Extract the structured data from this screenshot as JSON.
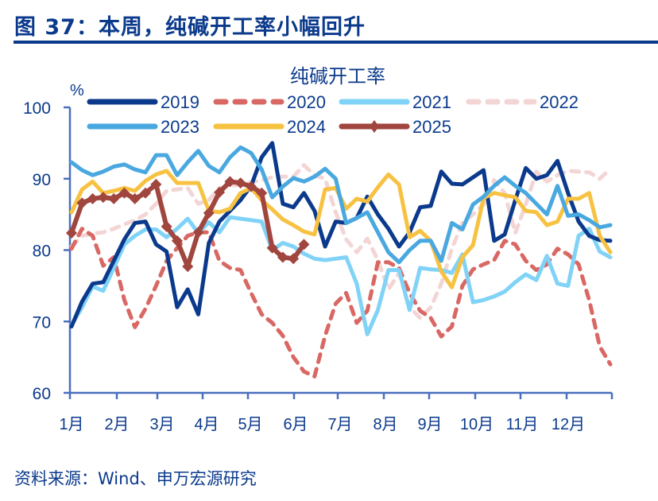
{
  "figure_title": "图 37：本周，纯碱开工率小幅回升",
  "source": "资料来源：Wind、申万宏源研究",
  "chart_data": {
    "type": "line",
    "title": "纯碱开工率",
    "ylabel": "%",
    "xlabel": "",
    "ylim": [
      60,
      100
    ],
    "yticks": [
      60,
      70,
      80,
      90,
      100
    ],
    "x_tick_labels": [
      "1月",
      "2月",
      "3月",
      "4月",
      "5月",
      "6月",
      "7月",
      "8月",
      "9月",
      "10月",
      "11月",
      "12月"
    ],
    "x_unit": "week of year",
    "grid": false,
    "legend_placement": "top",
    "series": [
      {
        "name": "2019",
        "color": "#0b3a8c",
        "style": "solid",
        "values": [
          69.3,
          72.8,
          75.3,
          75.5,
          78.5,
          81.5,
          83.8,
          84,
          80.8,
          79.8,
          72,
          74.5,
          71,
          81,
          84,
          85.5,
          87,
          89,
          93,
          95,
          86.5,
          86,
          88,
          85.5,
          80.5,
          84,
          83.8,
          84.5,
          87.5,
          85,
          83,
          80.5,
          82.5,
          86,
          86.2,
          91,
          89.3,
          89.2,
          90.2,
          91.2,
          81.3,
          82.2,
          87,
          91.5,
          90,
          90.5,
          92.5,
          88,
          84,
          82,
          81.4,
          81.3
        ]
      },
      {
        "name": "2020",
        "color": "#d96864",
        "style": "dashed",
        "values": [
          80.2,
          83,
          82,
          77.8,
          79,
          73,
          69.2,
          71.8,
          75,
          78.5,
          80.3,
          82,
          82.5,
          82.5,
          78.5,
          77.5,
          77.2,
          74,
          71,
          69.8,
          68,
          65,
          63,
          62.3,
          68,
          72.5,
          74,
          69.8,
          71.5,
          78.3,
          78.3,
          77.5,
          74,
          71.5,
          70.5,
          67.9,
          69.3,
          75,
          77.3,
          78,
          78.6,
          81.3,
          80.8,
          78.5,
          77.2,
          78,
          80.2,
          79.4,
          78,
          73,
          66.5,
          64
        ]
      },
      {
        "name": "2021",
        "color": "#80d3f7",
        "style": "solid",
        "values": [
          69.5,
          72,
          74.9,
          74.3,
          77.5,
          80.8,
          82,
          82.9,
          82.9,
          81.8,
          83,
          84.4,
          82.4,
          83.9,
          82.5,
          84.6,
          84.4,
          84.2,
          84,
          80,
          81,
          80.5,
          79.5,
          78.8,
          78.6,
          78.8,
          79,
          75.3,
          68.2,
          71.6,
          77.2,
          77.2,
          71.6,
          77.5,
          77.3,
          77.2,
          76.8,
          79.4,
          72.7,
          73,
          73.5,
          74.2,
          75.5,
          76.6,
          75.8,
          79.2,
          75.3,
          75,
          82,
          83,
          79.8,
          79
        ]
      },
      {
        "name": "2022",
        "color": "#f3d5d5",
        "style": "dashed",
        "values": [
          80.5,
          82,
          82.3,
          82.5,
          83,
          83.6,
          84.2,
          85,
          86.5,
          88.3,
          88.5,
          88.7,
          86.5,
          87,
          88.7,
          89,
          89.2,
          89.5,
          89.8,
          90.2,
          90.3,
          90.3,
          91.9,
          90.5,
          90,
          85.3,
          81.5,
          79.7,
          81.6,
          78.6,
          74.5,
          76.8,
          72,
          70.5,
          72,
          75.3,
          80.2,
          83.8,
          85,
          86.4,
          89.8,
          88,
          82.4,
          86.4,
          91,
          89.6,
          90.5,
          91.1,
          91,
          90.9,
          90,
          91.4
        ]
      },
      {
        "name": "2023",
        "color": "#4aa8e0",
        "style": "solid",
        "values": [
          92.3,
          91.2,
          90.5,
          91,
          91.7,
          92,
          91.3,
          90.9,
          93.3,
          93.3,
          90.5,
          92.3,
          93.9,
          91.8,
          90.9,
          93,
          94.4,
          93.6,
          91.3,
          87.4,
          88.9,
          90.1,
          89.6,
          90.3,
          91.4,
          90,
          83.8,
          84.5,
          85.3,
          82.5,
          79.7,
          78.3,
          80,
          81.3,
          81.3,
          78.5,
          83.8,
          82.9,
          86.4,
          87.5,
          89,
          90.2,
          89,
          88,
          86.5,
          85,
          89,
          84.8,
          85,
          84.2,
          83.2,
          83.5
        ]
      },
      {
        "name": "2024",
        "color": "#f7c242",
        "style": "solid",
        "values": [
          85.3,
          88.5,
          89.6,
          88,
          88.3,
          88.7,
          88.3,
          89.7,
          90.6,
          91.1,
          89.4,
          89.4,
          89.4,
          85.5,
          85.3,
          85.8,
          88,
          88.7,
          87,
          85.7,
          84.3,
          83.5,
          82.6,
          82.2,
          88.5,
          88.7,
          85.8,
          87.2,
          86.8,
          88.8,
          90.6,
          89.2,
          81.8,
          82.7,
          81.3,
          77,
          74.8,
          79,
          80.7,
          87.3,
          88,
          87.7,
          87.4,
          85.5,
          85.3,
          83.5,
          84,
          87.2,
          87.2,
          88,
          82,
          79.7
        ]
      },
      {
        "name": "2025",
        "color": "#a0463e",
        "style": "marker",
        "values": [
          82.4,
          86.6,
          87.2,
          87.4,
          87.2,
          88,
          87.2,
          88,
          89.2,
          83.3,
          81.3,
          77.7,
          82.5,
          85.2,
          88.1,
          89.6,
          89.4,
          88.9,
          88,
          80.3,
          79,
          78.8,
          80.8
        ]
      }
    ]
  }
}
